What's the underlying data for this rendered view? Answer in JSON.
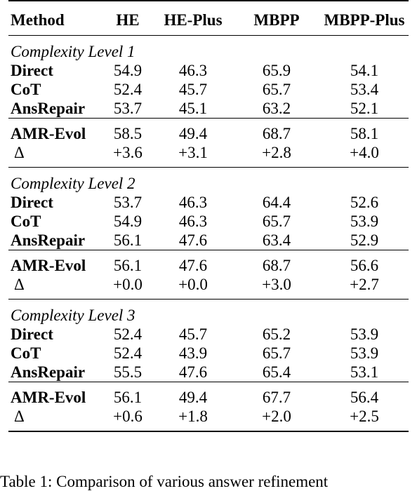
{
  "table": {
    "headers": [
      "Method",
      "HE",
      "HE-Plus",
      "MBPP",
      "MBPP-Plus"
    ],
    "groups": [
      {
        "level": "Complexity Level 1",
        "baselines": [
          {
            "method": "Direct",
            "values": [
              "54.9",
              "46.3",
              "65.9",
              "54.1"
            ]
          },
          {
            "method": "CoT",
            "values": [
              "52.4",
              "45.7",
              "65.7",
              "53.4"
            ]
          },
          {
            "method": "AnsRepair",
            "values": [
              "53.7",
              "45.1",
              "63.2",
              "52.1"
            ]
          }
        ],
        "amr": {
          "method": "AMR-Evol",
          "values": [
            "58.5",
            "49.4",
            "68.7",
            "58.1"
          ]
        },
        "delta": {
          "method": "Δ",
          "values": [
            "+3.6",
            "+3.1",
            "+2.8",
            "+4.0"
          ]
        }
      },
      {
        "level": "Complexity Level 2",
        "baselines": [
          {
            "method": "Direct",
            "values": [
              "53.7",
              "46.3",
              "64.4",
              "52.6"
            ]
          },
          {
            "method": "CoT",
            "values": [
              "54.9",
              "46.3",
              "65.7",
              "53.9"
            ]
          },
          {
            "method": "AnsRepair",
            "values": [
              "56.1",
              "47.6",
              "63.4",
              "52.9"
            ]
          }
        ],
        "amr": {
          "method": "AMR-Evol",
          "values": [
            "56.1",
            "47.6",
            "68.7",
            "56.6"
          ]
        },
        "delta": {
          "method": "Δ",
          "values": [
            "+0.0",
            "+0.0",
            "+3.0",
            "+2.7"
          ]
        }
      },
      {
        "level": "Complexity Level 3",
        "baselines": [
          {
            "method": "Direct",
            "values": [
              "52.4",
              "45.7",
              "65.2",
              "53.9"
            ]
          },
          {
            "method": "CoT",
            "values": [
              "52.4",
              "43.9",
              "65.7",
              "53.9"
            ]
          },
          {
            "method": "AnsRepair",
            "values": [
              "55.5",
              "47.6",
              "65.4",
              "53.1"
            ]
          }
        ],
        "amr": {
          "method": "AMR-Evol",
          "values": [
            "56.1",
            "49.4",
            "67.7",
            "56.4"
          ]
        },
        "delta": {
          "method": "Δ",
          "values": [
            "+0.6",
            "+1.8",
            "+2.0",
            "+2.5"
          ]
        }
      }
    ]
  },
  "caption": "Table 1:   Comparison of various answer refinement"
}
